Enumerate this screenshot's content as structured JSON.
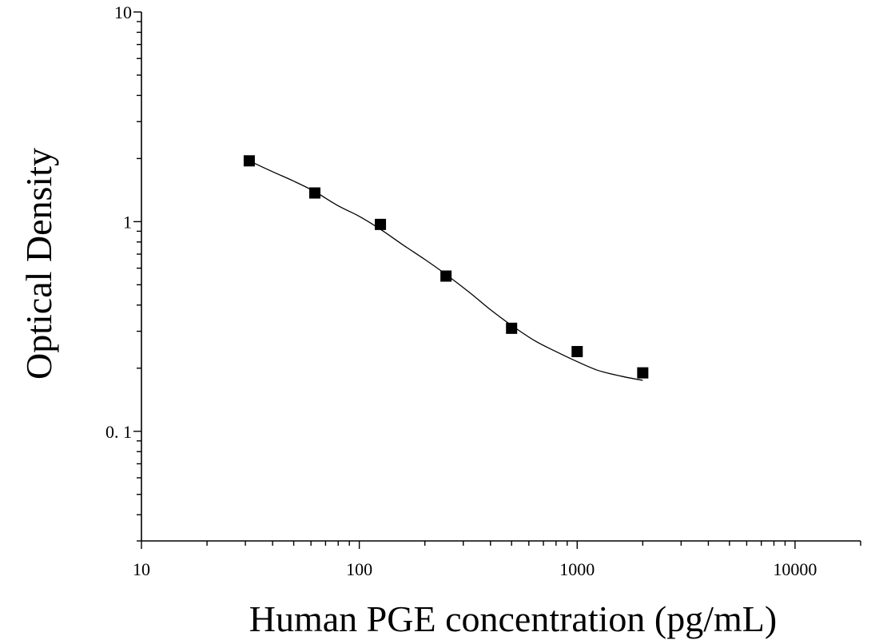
{
  "chart_data": {
    "type": "scatter",
    "title": "",
    "xlabel": "Human PGE concentration (pg/mL)",
    "ylabel": "Optical Density",
    "x_scale": "log",
    "y_scale": "log",
    "xlim": [
      10,
      20000
    ],
    "ylim": [
      0.03,
      10
    ],
    "x_ticks": [
      10,
      100,
      1000,
      10000
    ],
    "x_tick_labels": [
      "10",
      "100",
      "1000",
      "10000"
    ],
    "y_ticks": [
      0.1,
      1,
      10
    ],
    "y_tick_labels": [
      "0. 1",
      "1",
      "10"
    ],
    "grid": false,
    "legend": "none",
    "marker": "square",
    "marker_color": "#000000",
    "line_color": "#000000",
    "series": [
      {
        "x": [
          31.25,
          62.5,
          125,
          250,
          500,
          1000,
          2000
        ],
        "y": [
          1.95,
          1.37,
          0.97,
          0.55,
          0.31,
          0.24,
          0.19
        ]
      }
    ],
    "fit_curve": {
      "x": [
        31.25,
        40,
        50,
        62.5,
        80,
        100,
        125,
        160,
        200,
        250,
        320,
        400,
        500,
        640,
        800,
        1000,
        1250,
        1600,
        2000
      ],
      "y": [
        1.95,
        1.73,
        1.56,
        1.39,
        1.19,
        1.06,
        0.92,
        0.77,
        0.66,
        0.56,
        0.46,
        0.38,
        0.32,
        0.27,
        0.24,
        0.215,
        0.195,
        0.183,
        0.175
      ]
    }
  }
}
